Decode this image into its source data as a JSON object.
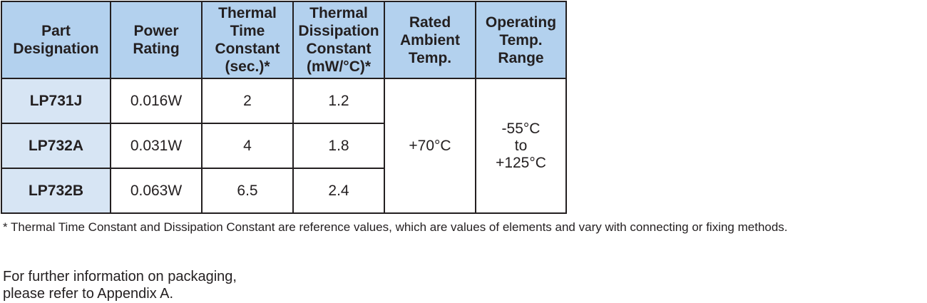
{
  "headers": [
    [
      "Part",
      "Designation"
    ],
    [
      "Power",
      "Rating"
    ],
    [
      "Thermal",
      "Time",
      "Constant",
      "(sec.)*"
    ],
    [
      "Thermal",
      "Dissipation",
      "Constant",
      "(mW/°C)*"
    ],
    [
      "Rated",
      "Ambient",
      "Temp."
    ],
    [
      "Operating",
      "Temp.",
      "Range"
    ]
  ],
  "rows": [
    {
      "part": "LP731J",
      "power": "0.016W",
      "time_constant": "2",
      "dissipation": "1.2"
    },
    {
      "part": "LP732A",
      "power": "0.031W",
      "time_constant": "4",
      "dissipation": "1.8"
    },
    {
      "part": "LP732B",
      "power": "0.063W",
      "time_constant": "6.5",
      "dissipation": "2.4"
    }
  ],
  "rated_ambient_temp": "+70°C",
  "operating_range": [
    "-55°C",
    "to",
    "+125°C"
  ],
  "footnote": "* Thermal Time Constant and Dissipation Constant are reference values, which are values of elements and vary with connecting or fixing methods.",
  "info": [
    "For further information on packaging,",
    "please refer to Appendix A."
  ],
  "colors": {
    "header_bg": "#b3d1ee",
    "part_cell_bg": "#d7e5f4",
    "border": "#231f20"
  }
}
